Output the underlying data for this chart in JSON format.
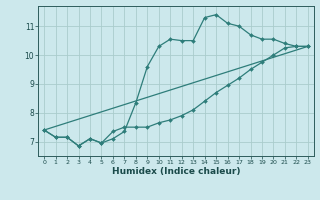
{
  "xlabel": "Humidex (Indice chaleur)",
  "ylabel": "",
  "xlim": [
    -0.5,
    23.5
  ],
  "ylim": [
    6.5,
    11.7
  ],
  "yticks": [
    7,
    8,
    9,
    10,
    11
  ],
  "xticks": [
    0,
    1,
    2,
    3,
    4,
    5,
    6,
    7,
    8,
    9,
    10,
    11,
    12,
    13,
    14,
    15,
    16,
    17,
    18,
    19,
    20,
    21,
    22,
    23
  ],
  "background_color": "#cce8ec",
  "grid_color": "#aacccc",
  "line_color": "#2e7d7a",
  "line1_x": [
    0,
    1,
    2,
    3,
    4,
    5,
    6,
    7,
    8,
    9,
    10,
    11,
    12,
    13,
    14,
    15,
    16,
    17,
    18,
    19,
    20,
    21,
    22,
    23
  ],
  "line1_y": [
    7.4,
    7.15,
    7.15,
    6.85,
    7.1,
    6.95,
    7.1,
    7.35,
    8.35,
    9.6,
    10.3,
    10.55,
    10.5,
    10.5,
    11.3,
    11.4,
    11.1,
    11.0,
    10.7,
    10.55,
    10.55,
    10.4,
    10.3,
    10.3
  ],
  "line2_x": [
    0,
    1,
    2,
    3,
    4,
    5,
    6,
    7,
    8,
    9,
    10,
    11,
    12,
    13,
    14,
    15,
    16,
    17,
    18,
    19,
    20,
    21,
    22,
    23
  ],
  "line2_y": [
    7.4,
    7.15,
    7.15,
    6.85,
    7.1,
    6.95,
    7.35,
    7.5,
    7.5,
    7.5,
    7.65,
    7.75,
    7.9,
    8.1,
    8.4,
    8.7,
    8.95,
    9.2,
    9.5,
    9.75,
    10.0,
    10.25,
    10.3,
    10.3
  ],
  "line3_x": [
    0,
    23
  ],
  "line3_y": [
    7.4,
    10.3
  ]
}
